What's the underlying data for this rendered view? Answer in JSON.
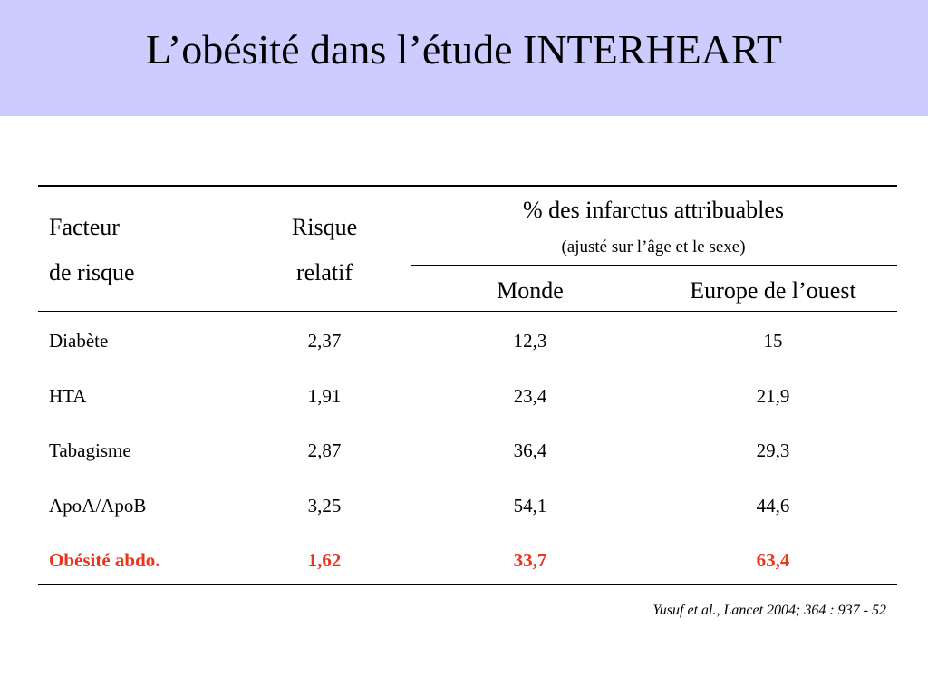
{
  "title": "L’obésité dans l’étude INTERHEART",
  "table": {
    "headers": {
      "factor_line1": "Facteur",
      "factor_line2": "de risque",
      "rr_line1": "Risque",
      "rr_line2": "relatif",
      "pct_title": "% des infarctus attribuables",
      "pct_note": "(ajusté sur l’âge et le sexe)",
      "world": "Monde",
      "western_europe": "Europe de l’ouest"
    },
    "rows": [
      {
        "factor": "Diabète",
        "rr": "2,37",
        "world": "12,3",
        "europe": "15"
      },
      {
        "factor": "HTA",
        "rr": "1,91",
        "world": "23,4",
        "europe": "21,9"
      },
      {
        "factor": "Tabagisme",
        "rr": "2,87",
        "world": "36,4",
        "europe": "29,3"
      },
      {
        "factor": "ApoA/ApoB",
        "rr": "3,25",
        "world": "54,1",
        "europe": "44,6"
      },
      {
        "factor": "Obésité abdo.",
        "rr": "1,62",
        "world": "33,7",
        "europe": "63,4"
      }
    ]
  },
  "citation": "Yusuf et al., Lancet 2004; 364 : 937 - 52",
  "colors": {
    "title_band": "#ccccff",
    "highlight": "#e8351c"
  }
}
